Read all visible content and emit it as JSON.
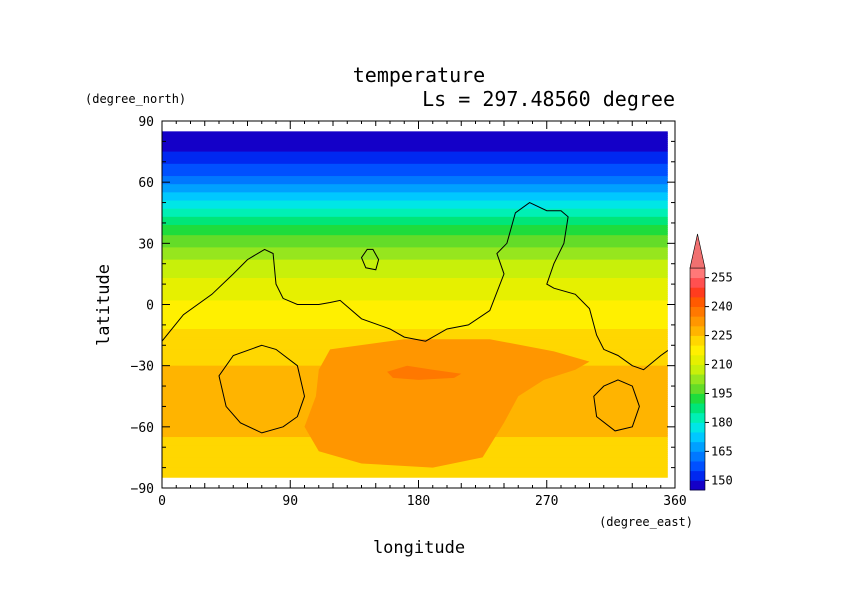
{
  "chart_data": {
    "type": "heatmap",
    "title": "temperature",
    "subtitle": "Ls = 297.48560 degree",
    "xlabel": "longitude",
    "ylabel": "latitude",
    "x_unit": "(degree_east)",
    "y_unit": "(degree_north)",
    "xlim": [
      0,
      360
    ],
    "ylim": [
      -90,
      90
    ],
    "x_ticks": [
      0,
      90,
      180,
      270,
      360
    ],
    "x_tick_labels": [
      "0",
      "90",
      "180",
      "270",
      "360"
    ],
    "y_ticks": [
      90,
      60,
      30,
      0,
      -30,
      -60,
      -90
    ],
    "y_tick_labels": [
      "90",
      "60",
      "30",
      "0",
      "−30",
      "−60",
      "−90"
    ],
    "data_lon_range": [
      0,
      355
    ],
    "data_lat_range": [
      -85,
      85
    ],
    "colorbar": {
      "levels": [
        145,
        150,
        155,
        160,
        165,
        170,
        175,
        180,
        185,
        190,
        195,
        200,
        205,
        210,
        215,
        220,
        225,
        230,
        235,
        240,
        245,
        250,
        255,
        260
      ],
      "colors": [
        "#1400c8",
        "#0028f0",
        "#0050ff",
        "#0078ff",
        "#00a0ff",
        "#00c8ff",
        "#00e6e6",
        "#00f0b4",
        "#00e678",
        "#1edc3c",
        "#64dc28",
        "#96e61e",
        "#c8f00a",
        "#e6f000",
        "#fff000",
        "#ffd700",
        "#ffb400",
        "#ff9600",
        "#ff7800",
        "#ff5a00",
        "#ff3c1e",
        "#ff5050",
        "#ff7878"
      ],
      "extend_color": "#f07070",
      "tick_values": [
        150,
        165,
        180,
        195,
        210,
        225,
        240,
        255
      ],
      "tick_labels": [
        "150",
        "165",
        "180",
        "195",
        "210",
        "225",
        "240",
        "255"
      ]
    },
    "temperature_by_latitude": {
      "lat": [
        85,
        75,
        65,
        55,
        45,
        35,
        25,
        15,
        5,
        -5,
        -15,
        -25,
        -35,
        -45,
        -55,
        -65,
        -75,
        -85
      ],
      "value": [
        148,
        150,
        158,
        170,
        183,
        194,
        203,
        209,
        214,
        217,
        221,
        224,
        226,
        226,
        226,
        225,
        224,
        224
      ]
    },
    "warm_region": {
      "level": 230,
      "polygon": [
        [
          118,
          -22
        ],
        [
          170,
          -17
        ],
        [
          230,
          -17
        ],
        [
          275,
          -23
        ],
        [
          300,
          -28
        ],
        [
          290,
          -32
        ],
        [
          268,
          -37
        ],
        [
          250,
          -45
        ],
        [
          240,
          -58
        ],
        [
          225,
          -75
        ],
        [
          190,
          -80
        ],
        [
          140,
          -78
        ],
        [
          110,
          -72
        ],
        [
          100,
          -60
        ],
        [
          108,
          -45
        ],
        [
          110,
          -32
        ]
      ]
    },
    "warmest_region": {
      "level": 235,
      "polygon": [
        [
          158,
          -33
        ],
        [
          172,
          -30
        ],
        [
          190,
          -32
        ],
        [
          210,
          -34
        ],
        [
          205,
          -36
        ],
        [
          180,
          -37
        ],
        [
          162,
          -36
        ]
      ]
    },
    "topography_contours": [
      [
        [
          0,
          -18
        ],
        [
          15,
          -5
        ],
        [
          35,
          5
        ],
        [
          50,
          15
        ],
        [
          60,
          22
        ],
        [
          72,
          27
        ],
        [
          78,
          25
        ],
        [
          80,
          10
        ],
        [
          85,
          3
        ],
        [
          95,
          0
        ],
        [
          110,
          0
        ],
        [
          118,
          1
        ],
        [
          125,
          2
        ],
        [
          140,
          -7
        ],
        [
          160,
          -12
        ],
        [
          170,
          -16
        ],
        [
          185,
          -18
        ],
        [
          200,
          -12
        ],
        [
          215,
          -10
        ],
        [
          230,
          -3
        ],
        [
          240,
          15
        ],
        [
          235,
          25
        ],
        [
          242,
          30
        ],
        [
          248,
          45
        ],
        [
          258,
          50
        ],
        [
          270,
          46
        ],
        [
          280,
          46
        ],
        [
          285,
          43
        ],
        [
          282,
          30
        ],
        [
          275,
          20
        ],
        [
          270,
          10
        ],
        [
          275,
          8
        ],
        [
          290,
          5
        ],
        [
          300,
          -2
        ],
        [
          305,
          -15
        ],
        [
          310,
          -22
        ],
        [
          320,
          -25
        ],
        [
          330,
          -30
        ],
        [
          338,
          -32
        ],
        [
          350,
          -25
        ],
        [
          360,
          -20
        ]
      ],
      [
        [
          70,
          -20
        ],
        [
          80,
          -22
        ],
        [
          95,
          -30
        ],
        [
          100,
          -45
        ],
        [
          95,
          -55
        ],
        [
          85,
          -60
        ],
        [
          70,
          -63
        ],
        [
          55,
          -58
        ],
        [
          45,
          -50
        ],
        [
          40,
          -35
        ],
        [
          50,
          -25
        ]
      ],
      [
        [
          320,
          -37
        ],
        [
          330,
          -40
        ],
        [
          335,
          -50
        ],
        [
          330,
          -60
        ],
        [
          318,
          -62
        ],
        [
          305,
          -55
        ],
        [
          303,
          -45
        ],
        [
          310,
          -40
        ]
      ],
      [
        [
          148,
          27
        ],
        [
          152,
          22
        ],
        [
          150,
          17
        ],
        [
          143,
          18
        ],
        [
          140,
          23
        ],
        [
          144,
          27
        ]
      ]
    ]
  }
}
